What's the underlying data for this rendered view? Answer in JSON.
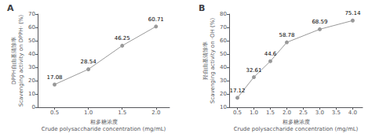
{
  "chart_data": [
    {
      "type": "line",
      "title": "A",
      "x": [
        0.5,
        1.0,
        1.5,
        2.0
      ],
      "values": [
        17.08,
        28.54,
        46.25,
        60.71
      ],
      "data_labels": true,
      "xlim": [
        0.25,
        2.2
      ],
      "ylim": [
        0,
        70
      ],
      "xticks": [
        0.5,
        {
          "value": 1.0,
          "label": "1.0"
        },
        1.5,
        {
          "value": 2.0,
          "label": "2.0"
        }
      ],
      "yticks": [
        0,
        10,
        20,
        30,
        40,
        50,
        60,
        70
      ],
      "xlabel": "粗多糖浓度\nCrude polysaccharide concentration (mg/mL)",
      "ylabel": "DPPH自由基清除率\nScavenging activity on DPPH· (%)",
      "color": "#999999",
      "marker": "circle",
      "grid": false
    },
    {
      "type": "line",
      "title": "B",
      "x": [
        0.5,
        1.0,
        1.5,
        2.0,
        3.0,
        4.0
      ],
      "values": [
        17.12,
        32.61,
        44.6,
        58.78,
        68.59,
        75.14
      ],
      "data_labels": true,
      "xlim": [
        0.25,
        4.3
      ],
      "ylim": [
        10,
        80
      ],
      "xticks": [
        0.5,
        {
          "value": 1.0,
          "label": "1.0"
        },
        1.5,
        {
          "value": 2.0,
          "label": "2.0"
        },
        2.5,
        {
          "value": 3.0,
          "label": "3.0"
        },
        3.5,
        {
          "value": 4.0,
          "label": "4.0"
        }
      ],
      "yticks": [
        10,
        20,
        30,
        40,
        50,
        60,
        70,
        80
      ],
      "xlabel": "粗多糖浓度\nCrude polysaccharide concentration (mg/mL)",
      "ylabel": "羟自由基清除率\nScavenging activity on ·OH (%)",
      "color": "#999999",
      "marker": "circle",
      "grid": false
    }
  ]
}
